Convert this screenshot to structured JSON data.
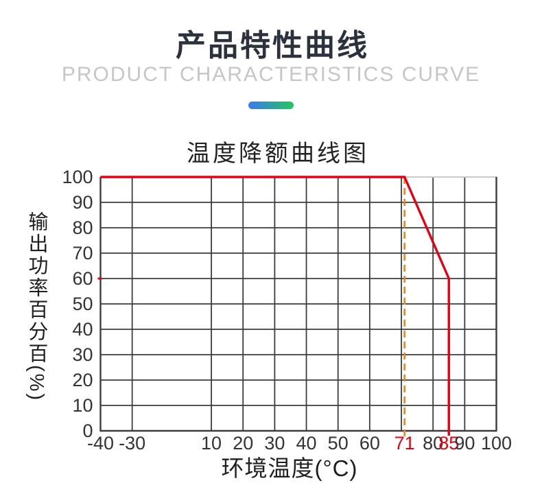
{
  "header": {
    "title": "产品特性曲线",
    "subtitle": "PRODUCT CHARACTERISTICS CURVE",
    "accent_gradient": {
      "from": "#3e78ea",
      "to": "#25c55f"
    }
  },
  "chart_data": {
    "type": "line",
    "title": "温度降额曲线图",
    "xlabel": "环境温度(°C)",
    "ylabel": "输出功率百分百(%)",
    "grid": true,
    "legend": "none",
    "grid_color": "#3c3c3c",
    "top_border_color": "#cbcbcb",
    "tick_color": "#333333",
    "x_axis": {
      "note": "non-linear axis: the span between -30 and 10 is compressed into 2.5 grid cells; every other cell equals 10 °C",
      "scale_stops_units": [
        [
          -40,
          0
        ],
        [
          -30,
          1
        ],
        [
          10,
          3.5
        ],
        [
          100,
          12.5
        ]
      ],
      "gridline_values": [
        -30,
        10,
        20,
        30,
        40,
        50,
        60,
        70,
        80,
        90
      ],
      "ticks": [
        {
          "label": "-40",
          "value": -40
        },
        {
          "label": "-30",
          "value": -30
        },
        {
          "label": "10",
          "value": 10
        },
        {
          "label": "20",
          "value": 20
        },
        {
          "label": "30",
          "value": 30
        },
        {
          "label": "40",
          "value": 40
        },
        {
          "label": "50",
          "value": 50
        },
        {
          "label": "60",
          "value": 60
        },
        {
          "label": "71",
          "value": 71,
          "color": "#e60012"
        },
        {
          "label": "80",
          "value": 80
        },
        {
          "label": "85",
          "value": 85,
          "color": "#e60012"
        },
        {
          "label": "90",
          "value": 90
        },
        {
          "label": "100",
          "value": 100
        }
      ]
    },
    "y_axis": {
      "min": 0,
      "max": 100,
      "tick_step": 10,
      "ticks": [
        "0",
        "10",
        "20",
        "30",
        "40",
        "50",
        "60",
        "70",
        "80",
        "90",
        "100"
      ],
      "gridline_values": [
        10,
        20,
        30,
        40,
        50,
        60,
        70,
        80,
        90
      ]
    },
    "series": [
      {
        "name": "output-power-derating",
        "color": "#e60012",
        "points": [
          [
            -40,
            100
          ],
          [
            71,
            100
          ],
          [
            85,
            60
          ],
          [
            85,
            0
          ]
        ]
      }
    ],
    "annotations": [
      {
        "type": "vline",
        "x": 71,
        "from_y": 0,
        "to_y": 100,
        "style": "dashed",
        "color": "#f0861a"
      },
      {
        "type": "x-axis-marker",
        "x": 85,
        "color": "#e60012"
      },
      {
        "type": "y-axis-marker",
        "y": 60,
        "color": "#e60012"
      }
    ]
  }
}
